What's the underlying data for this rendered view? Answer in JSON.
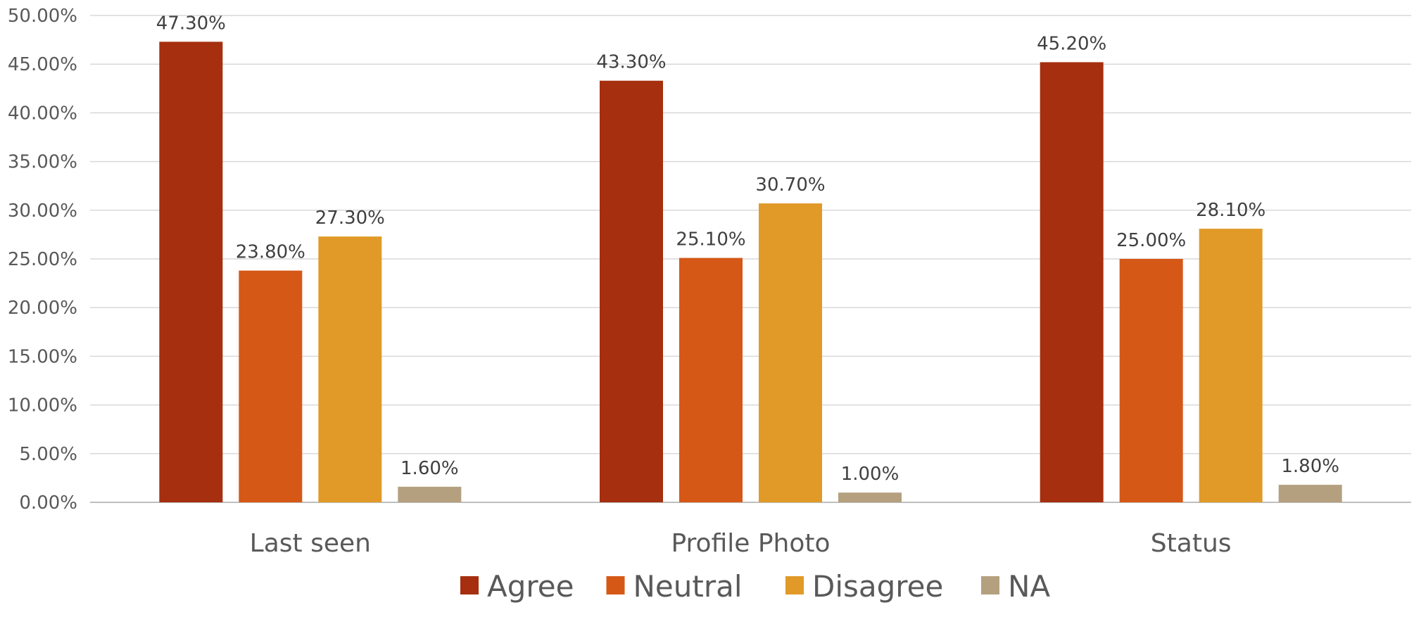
{
  "chart_data": {
    "type": "bar",
    "categories": [
      "Last seen",
      "Profile Photo",
      "Status"
    ],
    "series": [
      {
        "name": "Agree",
        "values": [
          47.3,
          43.3,
          45.2
        ],
        "labels": [
          "47.30%",
          "43.30%",
          "45.20%"
        ],
        "color": "#A52F0E"
      },
      {
        "name": "Neutral",
        "values": [
          23.8,
          25.1,
          25.0
        ],
        "labels": [
          "23.80%",
          "25.10%",
          "25.00%"
        ],
        "color": "#D55817"
      },
      {
        "name": "Disagree",
        "values": [
          27.3,
          30.7,
          28.1
        ],
        "labels": [
          "27.30%",
          "30.70%",
          "28.10%"
        ],
        "color": "#E19A28"
      },
      {
        "name": "NA",
        "values": [
          1.6,
          1.0,
          1.8
        ],
        "labels": [
          "1.60%",
          "1.00%",
          "1.80%"
        ],
        "color": "#B4A07F"
      }
    ],
    "ylim": [
      0,
      50
    ],
    "yticks": [
      "0.00%",
      "5.00%",
      "10.00%",
      "15.00%",
      "20.00%",
      "25.00%",
      "30.00%",
      "35.00%",
      "40.00%",
      "45.00%",
      "50.00%"
    ],
    "grid": true,
    "legend_position": "bottom",
    "title": "",
    "xlabel": "",
    "ylabel": ""
  }
}
